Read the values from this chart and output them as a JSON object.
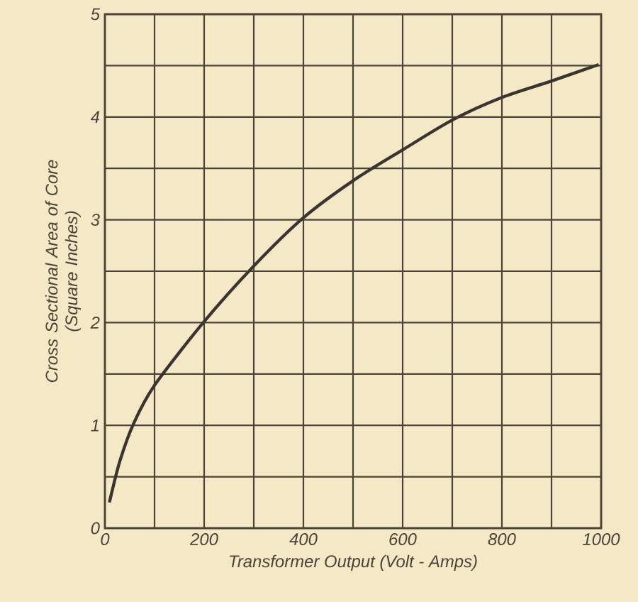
{
  "chart_data": {
    "type": "line",
    "xlabel": "Transformer Output  (Volt - Amps)",
    "ylabel": "Cross Sectional Area of Core\n(Square Inches)",
    "x": [
      9,
      30,
      58,
      100,
      200,
      300,
      400,
      500,
      600,
      700,
      800,
      900,
      995
    ],
    "series": [
      {
        "color": "#3a3530",
        "values": [
          0.25,
          0.65,
          1.02,
          1.39,
          2.01,
          2.55,
          3.02,
          3.38,
          3.68,
          3.97,
          4.19,
          4.35,
          4.51
        ]
      }
    ],
    "xlim": [
      0,
      1000
    ],
    "ylim": [
      0,
      5
    ],
    "xticks": [
      0,
      {
        "value": 100,
        "label": null
      },
      200,
      {
        "value": 300,
        "label": null
      },
      400,
      {
        "value": 500,
        "label": null
      },
      600,
      {
        "value": 700,
        "label": null
      },
      800,
      {
        "value": 900,
        "label": null
      },
      1000
    ],
    "yticks": [
      0,
      {
        "value": 0.5,
        "label": null
      },
      1,
      {
        "value": 1.5,
        "label": null
      },
      2,
      {
        "value": 2.5,
        "label": null
      },
      3,
      {
        "value": 3.5,
        "label": null
      },
      4,
      {
        "value": 4.5,
        "label": null
      },
      5
    ],
    "grid": true,
    "marker": "none",
    "line_style": "solid"
  }
}
